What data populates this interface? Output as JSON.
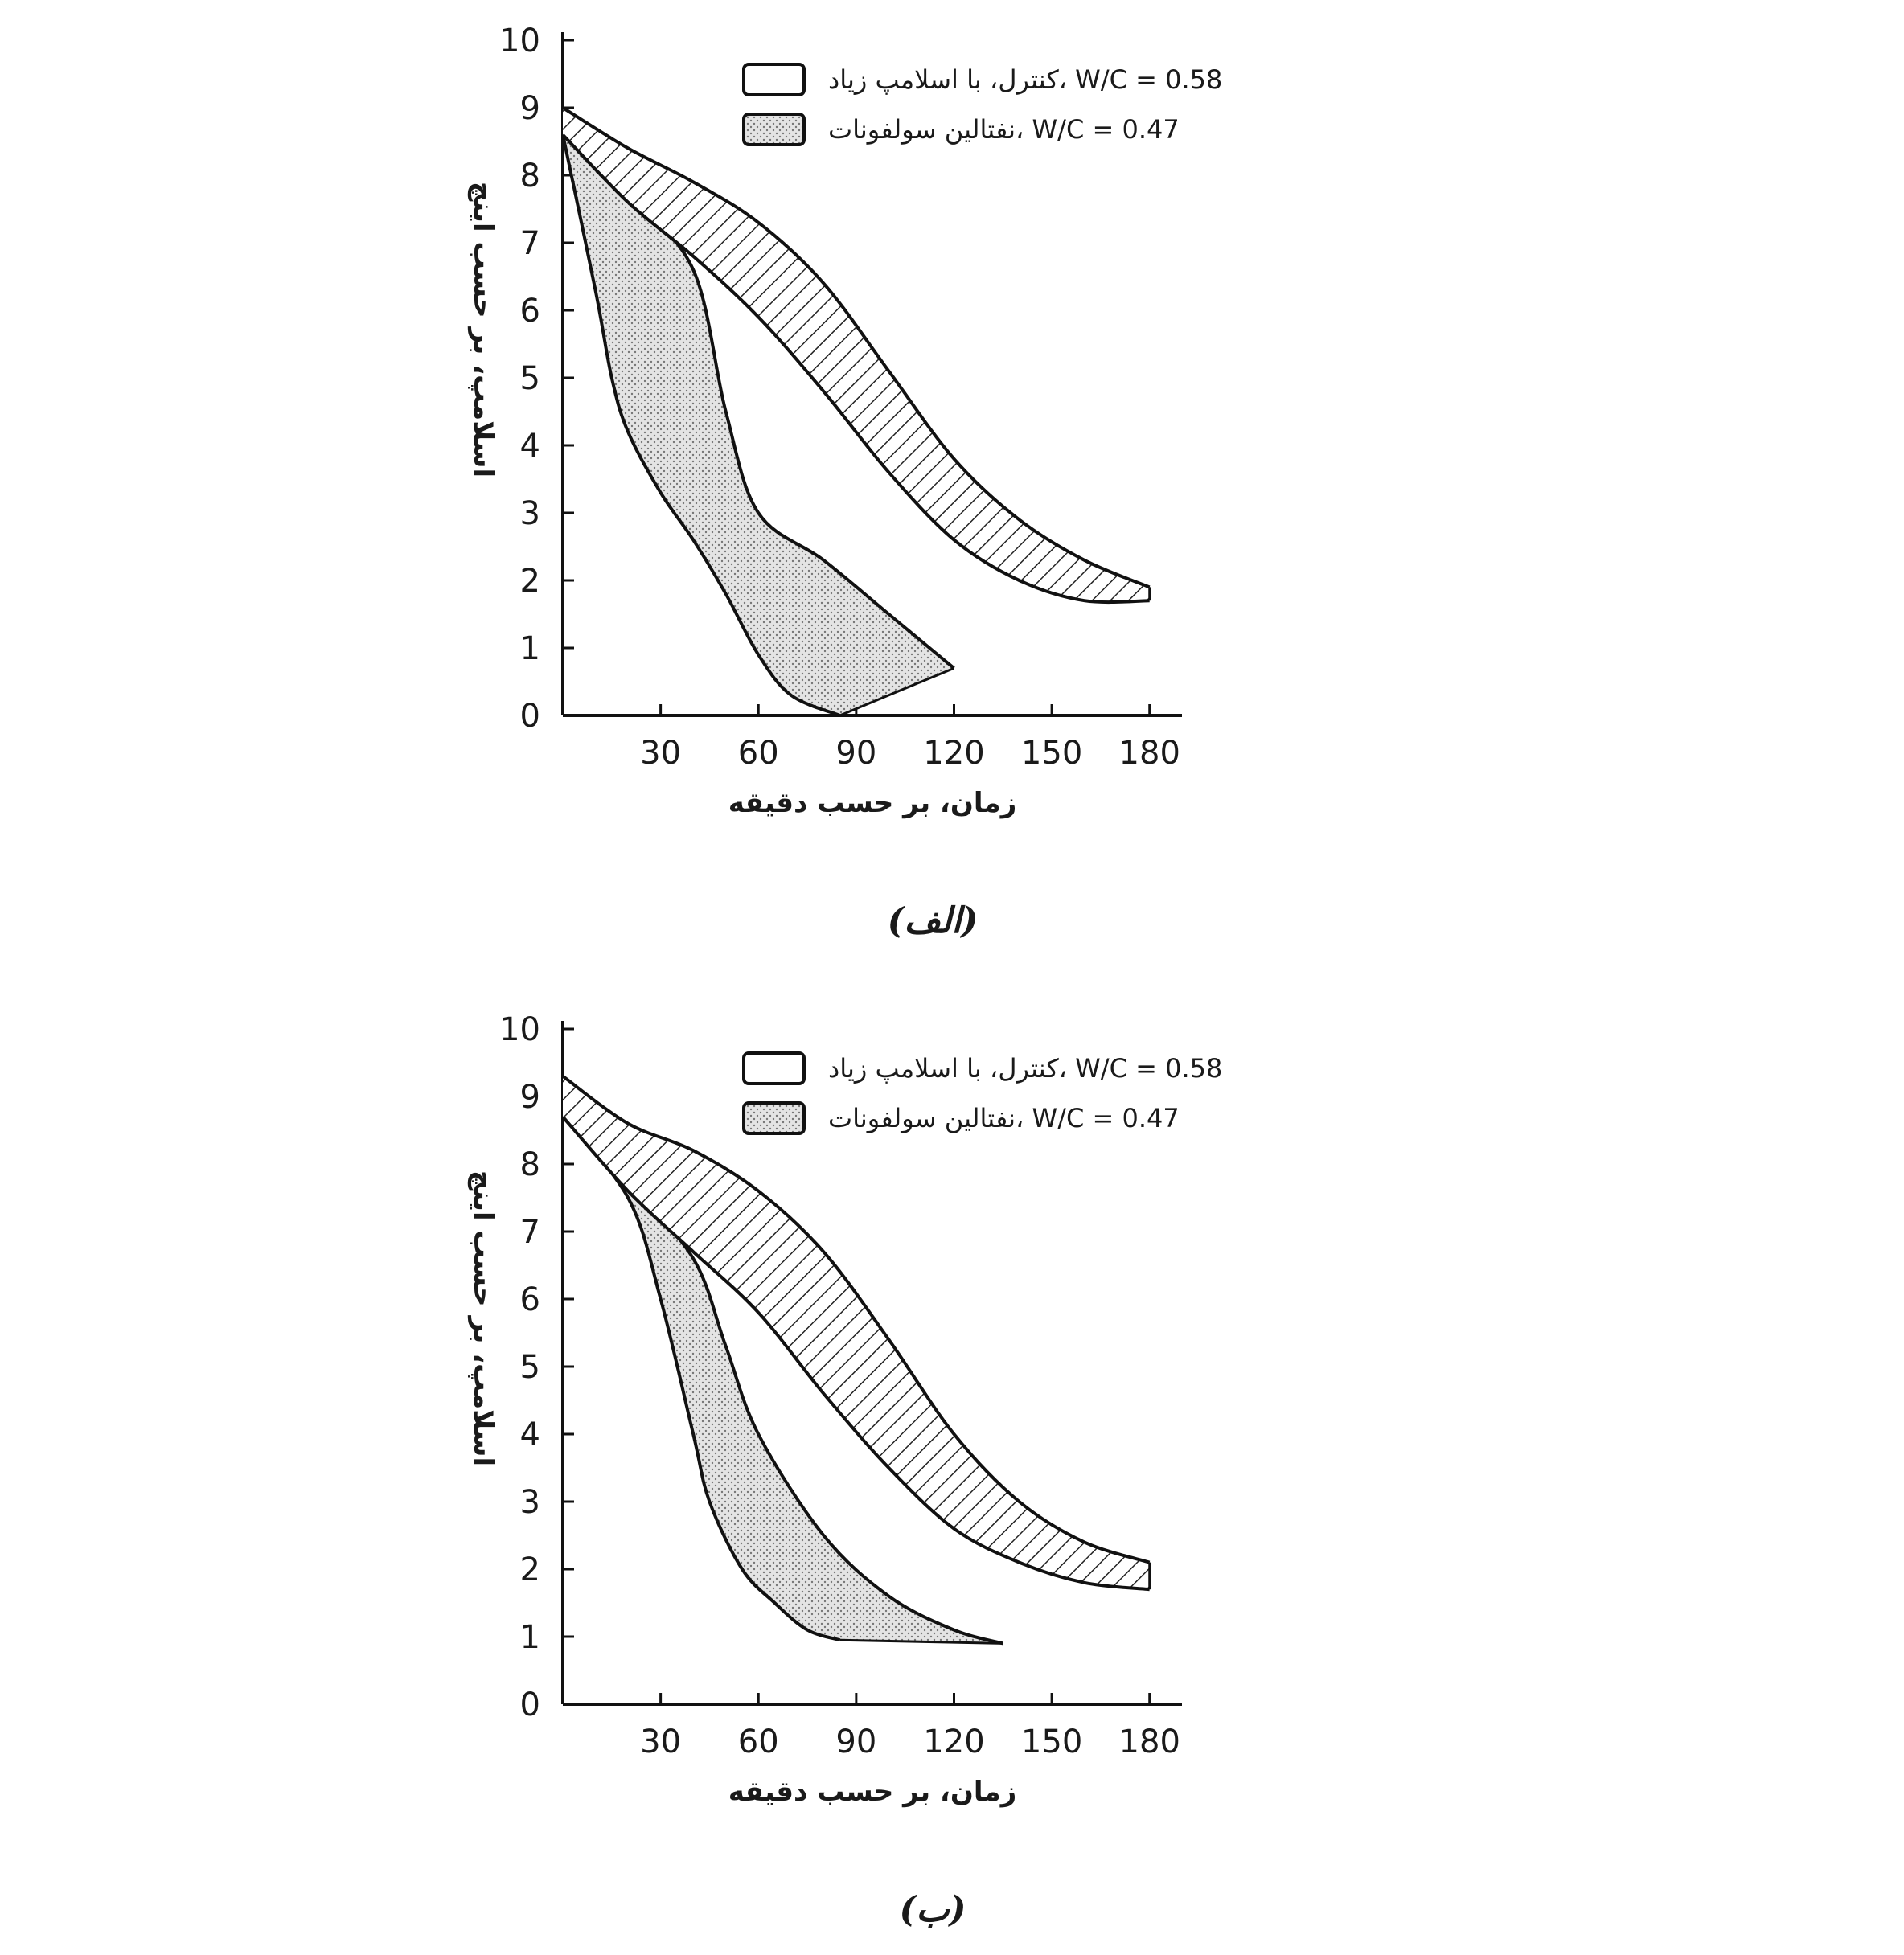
{
  "chart_data": [
    {
      "type": "area",
      "caption": "(الف)",
      "xlabel": "زمان، بر حسب دقیقه",
      "ylabel": "اسلامپ، بر حسب اینچ",
      "xlim": [
        0,
        185
      ],
      "ylim": [
        0,
        10
      ],
      "x_ticks": [
        30,
        60,
        90,
        120,
        150,
        180
      ],
      "y_ticks": [
        0,
        1,
        2,
        3,
        4,
        5,
        6,
        7,
        8,
        9,
        10
      ],
      "legend_position": "top-right",
      "series": [
        {
          "name": "کنترل، با اسلامپ زیاد، W/C = 0.58",
          "pattern": "diagonal-hatch",
          "upper": {
            "x": [
              0,
              20,
              40,
              60,
              80,
              100,
              120,
              140,
              160,
              180
            ],
            "y": [
              9.0,
              8.4,
              7.9,
              7.3,
              6.4,
              5.1,
              3.8,
              2.9,
              2.3,
              1.9
            ]
          },
          "lower": {
            "x": [
              0,
              20,
              40,
              60,
              80,
              100,
              120,
              140,
              160,
              180
            ],
            "y": [
              8.6,
              7.6,
              6.8,
              5.9,
              4.8,
              3.6,
              2.6,
              2.0,
              1.7,
              1.7
            ]
          }
        },
        {
          "name": "نفتالین سولفونات، W/C = 0.47",
          "pattern": "dotted",
          "upper": {
            "x": [
              0,
              20,
              40,
              50,
              60,
              80,
              100,
              120
            ],
            "y": [
              8.6,
              7.7,
              6.6,
              4.5,
              3.0,
              2.3,
              1.5,
              0.7
            ]
          },
          "lower": {
            "x": [
              0,
              10,
              15,
              20,
              30,
              40,
              50,
              60,
              70,
              85
            ],
            "y": [
              8.6,
              6.3,
              5.0,
              4.2,
              3.3,
              2.6,
              1.8,
              0.9,
              0.3,
              0
            ]
          }
        }
      ]
    },
    {
      "type": "area",
      "caption": "(ب)",
      "xlabel": "زمان، بر حسب دقیقه",
      "ylabel": "اسلامپ، بر حسب اینچ",
      "xlim": [
        0,
        185
      ],
      "ylim": [
        0,
        10
      ],
      "x_ticks": [
        30,
        60,
        90,
        120,
        150,
        180
      ],
      "y_ticks": [
        0,
        1,
        2,
        3,
        4,
        5,
        6,
        7,
        8,
        9,
        10
      ],
      "legend_position": "top-right",
      "series": [
        {
          "name": "کنترل، با اسلامپ زیاد، W/C = 0.58",
          "pattern": "diagonal-hatch",
          "upper": {
            "x": [
              0,
              20,
              40,
              60,
              80,
              100,
              120,
              140,
              160,
              180
            ],
            "y": [
              9.3,
              8.6,
              8.2,
              7.6,
              6.7,
              5.4,
              4.0,
              3.0,
              2.4,
              2.1
            ]
          },
          "lower": {
            "x": [
              0,
              20,
              40,
              60,
              80,
              100,
              120,
              140,
              160,
              180
            ],
            "y": [
              8.7,
              7.6,
              6.7,
              5.8,
              4.6,
              3.5,
              2.6,
              2.1,
              1.8,
              1.7
            ]
          }
        },
        {
          "name": "نفتالین سولفونات، W/C = 0.47",
          "pattern": "dotted",
          "upper": {
            "x": [
              0,
              20,
              40,
              50,
              60,
              80,
              100,
              120,
              135
            ],
            "y": [
              8.7,
              7.7,
              6.6,
              5.3,
              4.0,
              2.5,
              1.6,
              1.1,
              0.9
            ]
          },
          "lower": {
            "x": [
              0,
              20,
              30,
              40,
              45,
              55,
              65,
              75,
              85
            ],
            "y": [
              8.7,
              7.5,
              6.0,
              4.0,
              3.0,
              2.0,
              1.5,
              1.1,
              0.95
            ]
          }
        }
      ]
    }
  ]
}
